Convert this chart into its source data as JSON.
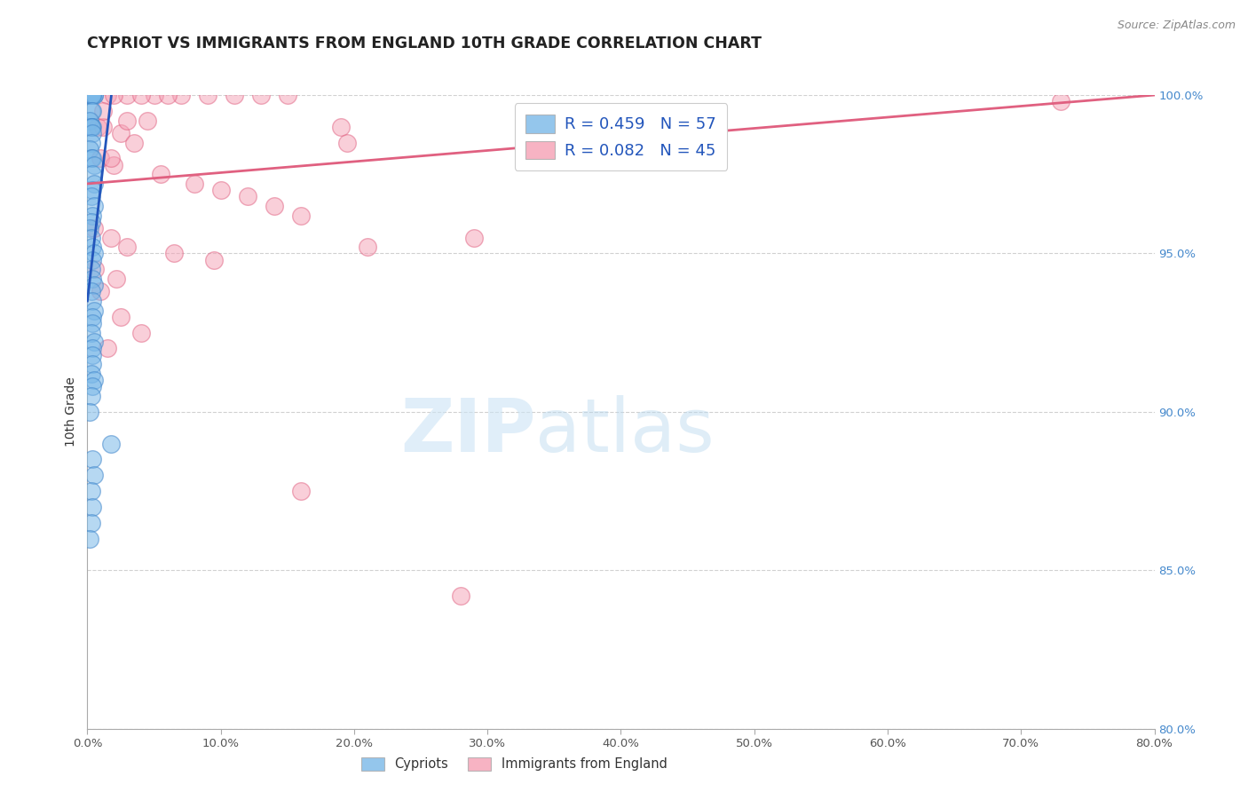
{
  "title": "CYPRIOT VS IMMIGRANTS FROM ENGLAND 10TH GRADE CORRELATION CHART",
  "source": "Source: ZipAtlas.com",
  "ylabel": "10th Grade",
  "xlim": [
    0.0,
    80.0
  ],
  "ylim": [
    80.0,
    100.0
  ],
  "blue_color": "#7ab8e8",
  "blue_edge": "#4488cc",
  "pink_color": "#f5a0b5",
  "pink_edge": "#e06080",
  "blue_line_color": "#2255bb",
  "pink_line_color": "#e06080",
  "blue_line_x0": 0.0,
  "blue_line_y0": 93.5,
  "blue_line_x1": 1.8,
  "blue_line_y1": 100.0,
  "pink_line_x0": 0.0,
  "pink_line_y0": 97.2,
  "pink_line_x1": 80.0,
  "pink_line_y1": 100.0,
  "blue_scatter_x": [
    0.2,
    0.3,
    0.4,
    0.5,
    0.3,
    0.4,
    0.5,
    0.4,
    0.3,
    0.4,
    0.2,
    0.3,
    0.4,
    0.3,
    0.4,
    0.3,
    0.2,
    0.3,
    0.4,
    0.5,
    0.4,
    0.5,
    0.4,
    0.3,
    0.5,
    0.4,
    0.3,
    0.2,
    0.3,
    0.4,
    0.5,
    0.4,
    0.3,
    0.4,
    0.5,
    0.3,
    0.4,
    0.5,
    0.4,
    0.4,
    0.3,
    0.5,
    0.4,
    0.4,
    0.4,
    0.3,
    0.5,
    0.4,
    0.3,
    0.2,
    1.8,
    0.4,
    0.5,
    0.3,
    0.4,
    0.3,
    0.2
  ],
  "blue_scatter_y": [
    100.0,
    100.0,
    100.0,
    100.0,
    100.0,
    100.0,
    100.0,
    100.0,
    99.5,
    99.5,
    99.2,
    99.0,
    99.0,
    99.0,
    98.8,
    98.5,
    98.3,
    98.0,
    98.0,
    97.8,
    97.5,
    97.2,
    97.0,
    96.8,
    96.5,
    96.2,
    96.0,
    95.8,
    95.5,
    95.2,
    95.0,
    94.8,
    94.5,
    94.2,
    94.0,
    93.8,
    93.5,
    93.2,
    93.0,
    92.8,
    92.5,
    92.2,
    92.0,
    91.8,
    91.5,
    91.2,
    91.0,
    90.8,
    90.5,
    90.0,
    89.0,
    88.5,
    88.0,
    87.5,
    87.0,
    86.5,
    86.0
  ],
  "pink_scatter_x": [
    1.5,
    3.0,
    5.0,
    7.0,
    9.0,
    11.0,
    13.0,
    15.0,
    4.0,
    6.0,
    2.0,
    4.5,
    0.8,
    1.2,
    2.5,
    3.5,
    1.0,
    2.0,
    5.5,
    8.0,
    10.0,
    12.0,
    14.0,
    16.0,
    0.5,
    1.8,
    3.0,
    6.5,
    9.5,
    0.6,
    2.2,
    29.0,
    1.0,
    2.5,
    4.0,
    1.5,
    3.0,
    1.2,
    21.0,
    1.8,
    19.0,
    73.0,
    19.5,
    16.0,
    28.0
  ],
  "pink_scatter_y": [
    100.0,
    100.0,
    100.0,
    100.0,
    100.0,
    100.0,
    100.0,
    100.0,
    100.0,
    100.0,
    100.0,
    99.2,
    99.0,
    99.0,
    98.8,
    98.5,
    98.0,
    97.8,
    97.5,
    97.2,
    97.0,
    96.8,
    96.5,
    96.2,
    95.8,
    95.5,
    95.2,
    95.0,
    94.8,
    94.5,
    94.2,
    95.5,
    93.8,
    93.0,
    92.5,
    92.0,
    99.2,
    99.5,
    95.2,
    98.0,
    99.0,
    99.8,
    98.5,
    87.5,
    84.2
  ],
  "x_ticks": [
    0,
    10,
    20,
    30,
    40,
    50,
    60,
    70,
    80
  ],
  "y_ticks": [
    80,
    85,
    90,
    95,
    100
  ],
  "legend_R1": "R = 0.459",
  "legend_N1": "N = 57",
  "legend_R2": "R = 0.082",
  "legend_N2": "N = 45",
  "bottom_legend_1": "Cypriots",
  "bottom_legend_2": "Immigrants from England"
}
